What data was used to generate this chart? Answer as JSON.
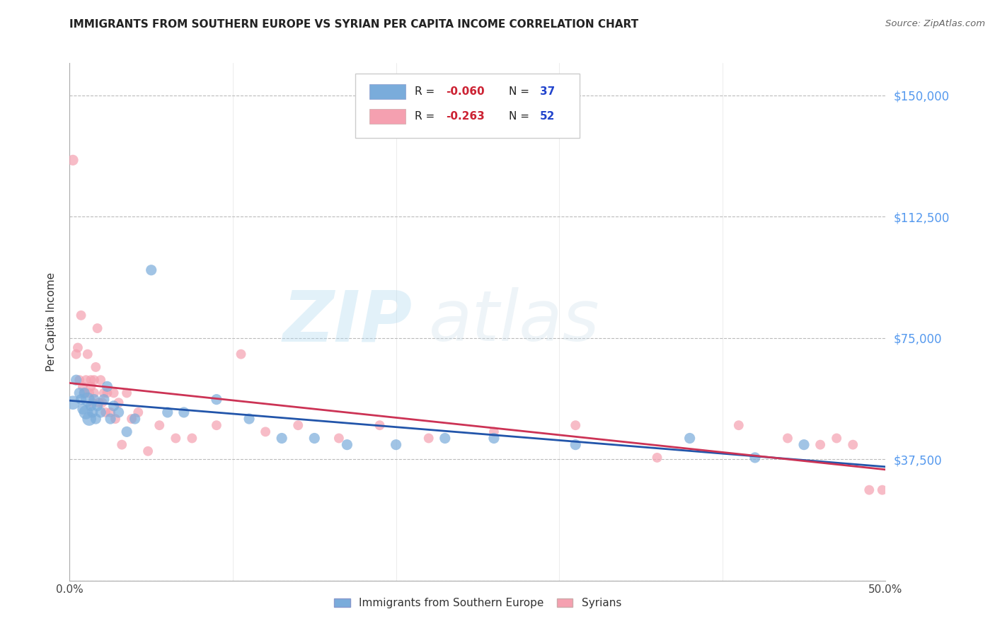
{
  "title": "IMMIGRANTS FROM SOUTHERN EUROPE VS SYRIAN PER CAPITA INCOME CORRELATION CHART",
  "source": "Source: ZipAtlas.com",
  "ylabel": "Per Capita Income",
  "xlim": [
    0,
    0.5
  ],
  "ylim": [
    0,
    160000
  ],
  "yticks": [
    0,
    37500,
    75000,
    112500,
    150000
  ],
  "ytick_labels": [
    "",
    "$37,500",
    "$75,000",
    "$112,500",
    "$150,000"
  ],
  "xticks": [
    0.0,
    0.1,
    0.2,
    0.3,
    0.4,
    0.5
  ],
  "xtick_labels": [
    "0.0%",
    "",
    "",
    "",
    "",
    "50.0%"
  ],
  "background_color": "#ffffff",
  "grid_color": "#bbbbbb",
  "watermark_zip": "ZIP",
  "watermark_atlas": "atlas",
  "blue_color": "#7aacdb",
  "pink_color": "#f5a0b0",
  "blue_line_color": "#2255aa",
  "pink_line_color": "#cc3355",
  "legend_label_blue": "Immigrants from Southern Europe",
  "legend_label_pink": "Syrians",
  "blue_x": [
    0.002,
    0.004,
    0.006,
    0.007,
    0.008,
    0.009,
    0.01,
    0.011,
    0.012,
    0.013,
    0.014,
    0.015,
    0.016,
    0.017,
    0.019,
    0.021,
    0.023,
    0.025,
    0.027,
    0.03,
    0.035,
    0.04,
    0.05,
    0.06,
    0.07,
    0.09,
    0.11,
    0.13,
    0.15,
    0.17,
    0.2,
    0.23,
    0.26,
    0.31,
    0.38,
    0.42,
    0.45
  ],
  "blue_y": [
    55000,
    62000,
    58000,
    56000,
    53000,
    58000,
    52000,
    56000,
    50000,
    54000,
    52000,
    56000,
    50000,
    54000,
    52000,
    56000,
    60000,
    50000,
    54000,
    52000,
    46000,
    50000,
    96000,
    52000,
    52000,
    56000,
    50000,
    44000,
    44000,
    42000,
    42000,
    44000,
    44000,
    42000,
    44000,
    38000,
    42000
  ],
  "pink_x": [
    0.002,
    0.004,
    0.005,
    0.006,
    0.007,
    0.008,
    0.009,
    0.01,
    0.011,
    0.012,
    0.013,
    0.013,
    0.014,
    0.015,
    0.015,
    0.016,
    0.017,
    0.018,
    0.019,
    0.02,
    0.021,
    0.022,
    0.023,
    0.025,
    0.027,
    0.028,
    0.03,
    0.032,
    0.035,
    0.038,
    0.042,
    0.048,
    0.055,
    0.065,
    0.075,
    0.09,
    0.105,
    0.12,
    0.14,
    0.165,
    0.19,
    0.22,
    0.26,
    0.31,
    0.36,
    0.41,
    0.44,
    0.46,
    0.47,
    0.48,
    0.49,
    0.498
  ],
  "pink_y": [
    130000,
    70000,
    72000,
    62000,
    82000,
    60000,
    58000,
    62000,
    70000,
    58000,
    60000,
    62000,
    55000,
    58000,
    62000,
    66000,
    78000,
    55000,
    62000,
    55000,
    58000,
    52000,
    58000,
    52000,
    58000,
    50000,
    55000,
    42000,
    58000,
    50000,
    52000,
    40000,
    48000,
    44000,
    44000,
    48000,
    70000,
    46000,
    48000,
    44000,
    48000,
    44000,
    46000,
    48000,
    38000,
    48000,
    44000,
    42000,
    44000,
    42000,
    28000,
    28000
  ],
  "blue_sizes": [
    200,
    120,
    120,
    120,
    120,
    120,
    200,
    200,
    200,
    120,
    120,
    120,
    120,
    120,
    120,
    120,
    120,
    120,
    120,
    120,
    120,
    120,
    120,
    120,
    120,
    120,
    120,
    120,
    120,
    120,
    120,
    120,
    120,
    120,
    120,
    120,
    120
  ],
  "pink_sizes": [
    120,
    100,
    100,
    100,
    100,
    100,
    100,
    100,
    100,
    100,
    100,
    100,
    100,
    100,
    100,
    100,
    100,
    100,
    100,
    100,
    100,
    100,
    100,
    100,
    100,
    100,
    100,
    100,
    100,
    100,
    100,
    100,
    100,
    100,
    100,
    100,
    100,
    100,
    100,
    100,
    100,
    100,
    100,
    100,
    100,
    100,
    100,
    100,
    100,
    100,
    100,
    100
  ],
  "blue_intercept": 52000,
  "blue_slope": -8000,
  "pink_intercept": 58000,
  "pink_slope": -60000
}
